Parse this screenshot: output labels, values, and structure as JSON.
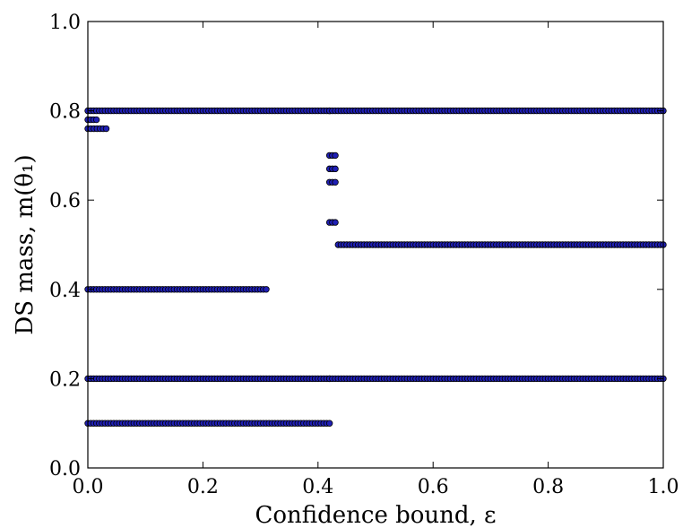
{
  "chart_data": {
    "type": "scatter",
    "xlabel": "Confidence bound, ε",
    "ylabel": "DS mass, m(θ₁)",
    "xlim": [
      0.0,
      1.0
    ],
    "ylim": [
      0.0,
      1.0
    ],
    "x_ticks": [
      "0.0",
      "0.2",
      "0.4",
      "0.6",
      "0.8",
      "1.0"
    ],
    "y_ticks": [
      "0.0",
      "0.2",
      "0.4",
      "0.6",
      "0.8",
      "1.0"
    ],
    "grid": false,
    "marker_color": "#1f1fb4",
    "marker_edge_color": "#000000",
    "sample_step": 0.005,
    "segments": [
      {
        "y": 0.8,
        "x_range": [
          0.0,
          0.42
        ]
      },
      {
        "y": 0.8,
        "x_range": [
          0.42,
          1.0
        ]
      },
      {
        "y": 0.78,
        "x_range": [
          0.0,
          0.015
        ]
      },
      {
        "y": 0.76,
        "x_range": [
          0.0,
          0.032
        ]
      },
      {
        "y": 0.7,
        "x_range": [
          0.42,
          0.43
        ]
      },
      {
        "y": 0.67,
        "x_range": [
          0.42,
          0.43
        ]
      },
      {
        "y": 0.64,
        "x_range": [
          0.42,
          0.43
        ]
      },
      {
        "y": 0.55,
        "x_range": [
          0.42,
          0.43
        ]
      },
      {
        "y": 0.5,
        "x_range": [
          0.435,
          1.0
        ]
      },
      {
        "y": 0.4,
        "x_range": [
          0.0,
          0.31
        ]
      },
      {
        "y": 0.2,
        "x_range": [
          0.0,
          0.42
        ]
      },
      {
        "y": 0.2,
        "x_range": [
          0.42,
          1.0
        ]
      },
      {
        "y": 0.1,
        "x_range": [
          0.0,
          0.42
        ]
      }
    ]
  }
}
